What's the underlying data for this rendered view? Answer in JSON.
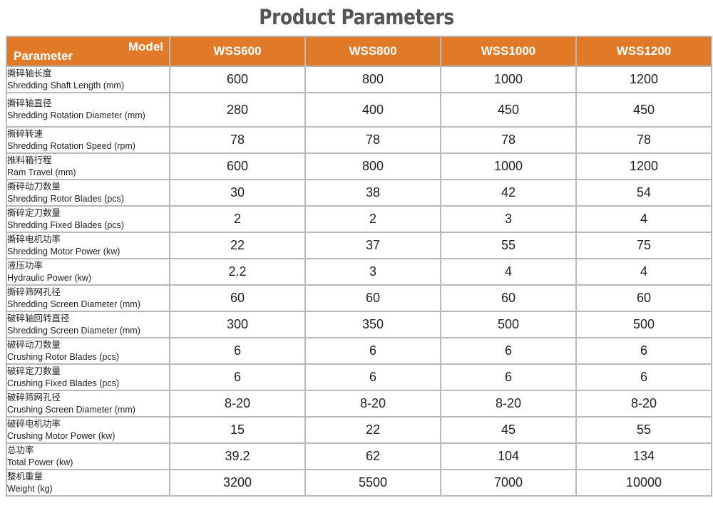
{
  "title": "Product Parameters",
  "header": {
    "corner_model": "Model",
    "corner_parameter": "Parameter",
    "models": [
      "WSS600",
      "WSS800",
      "WSS1000",
      "WSS1200"
    ]
  },
  "rows": [
    {
      "cn": "撕碎轴长度",
      "en": "Shredding Shaft Length (mm)",
      "values": [
        "600",
        "800",
        "1000",
        "1200"
      ]
    },
    {
      "cn": "撕碎轴直径",
      "en": "Shredding Rotation Diameter (mm)",
      "values": [
        "280",
        "400",
        "450",
        "450"
      ]
    },
    {
      "cn": "撕碎转速",
      "en": "Shredding Rotation Speed (rpm)",
      "values": [
        "78",
        "78",
        "78",
        "78"
      ]
    },
    {
      "cn": "推料箱行程",
      "en": "Ram Travel (mm)",
      "values": [
        "600",
        "800",
        "1000",
        "1200"
      ]
    },
    {
      "cn": "撕碎动刀数量",
      "en": "Shredding Rotor Blades (pcs)",
      "values": [
        "30",
        "38",
        "42",
        "54"
      ]
    },
    {
      "cn": "撕碎定刀数量",
      "en": "Shredding Fixed Blades (pcs)",
      "values": [
        "2",
        "2",
        "3",
        "4"
      ]
    },
    {
      "cn": "撕碎电机功率",
      "en": "Shredding Motor Power (kw)",
      "values": [
        "22",
        "37",
        "55",
        "75"
      ]
    },
    {
      "cn": "液压功率",
      "en": "Hydraulic Power (kw)",
      "values": [
        "2.2",
        "3",
        "4",
        "4"
      ]
    },
    {
      "cn": "撕碎筛网孔径",
      "en": "Shredding Screen Diameter (mm)",
      "values": [
        "60",
        "60",
        "60",
        "60"
      ]
    },
    {
      "cn": "破碎轴回转直径",
      "en": "Shredding Screen Diameter (mm)",
      "values": [
        "300",
        "350",
        "500",
        "500"
      ]
    },
    {
      "cn": "破碎动刀数量",
      "en": "Crushing Rotor Blades (pcs)",
      "values": [
        "6",
        "6",
        "6",
        "6"
      ]
    },
    {
      "cn": "破碎定刀数量",
      "en": "Crushing Fixed Blades (pcs)",
      "values": [
        "6",
        "6",
        "6",
        "6"
      ]
    },
    {
      "cn": "破碎筛网孔径",
      "en": "Crushing Screen Diameter (mm)",
      "values": [
        "8-20",
        "8-20",
        "8-20",
        "8-20"
      ]
    },
    {
      "cn": "破碎电机功率",
      "en": "Crushing Motor Power (kw)",
      "values": [
        "15",
        "22",
        "45",
        "55"
      ]
    },
    {
      "cn": "总功率",
      "en": "Total Power (kw)",
      "values": [
        "39.2",
        "62",
        "104",
        "134"
      ]
    },
    {
      "cn": "整机重量",
      "en": "Weight (kg)",
      "values": [
        "3200",
        "5500",
        "7000",
        "10000"
      ]
    }
  ]
}
